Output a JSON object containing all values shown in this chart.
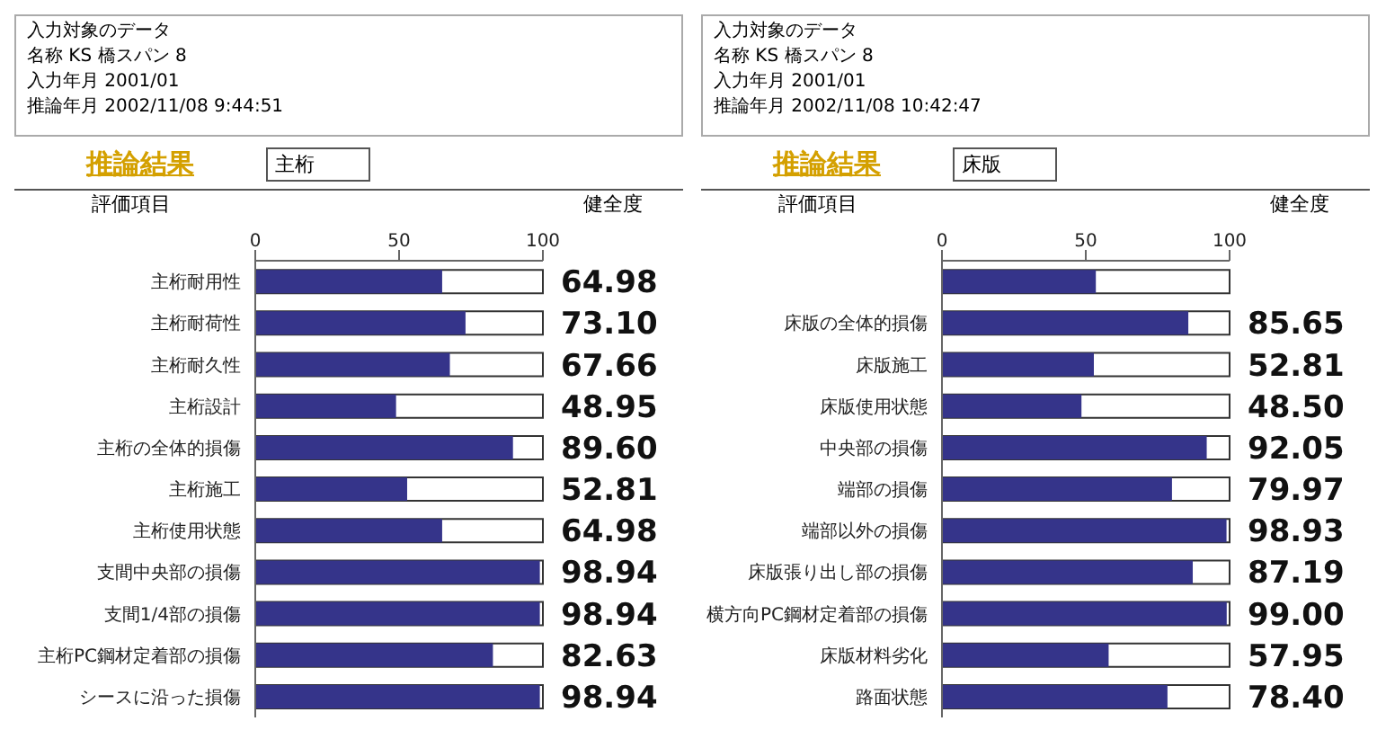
{
  "chart_data": [
    {
      "type": "bar",
      "orientation": "horizontal",
      "title": "推論結果",
      "subtitle": "主桁",
      "ylabel": "評価項目",
      "annotations": [
        "入力対象のデータ",
        "名称 KS 橋スパン 8",
        "入力年月 2001/01",
        "推論年月 2002/11/08 9:44:51",
        "健全度"
      ],
      "categories": [
        "主桁耐用性",
        "主桁耐荷性",
        "主桁耐久性",
        "主桁設計",
        "主桁の全体的損傷",
        "主桁施工",
        "主桁使用状態",
        "支間中央部の損傷",
        "支間1/4部の損傷",
        "主桁PC鋼材定着部の損傷",
        "シースに沿った損傷"
      ],
      "values": [
        64.98,
        73.1,
        67.66,
        48.95,
        89.6,
        52.81,
        64.98,
        98.94,
        98.94,
        82.63,
        98.94
      ],
      "value_labels": [
        "64.98",
        "73.10",
        "67.66",
        "48.95",
        "89.60",
        "52.81",
        "64.98",
        "98.94",
        "98.94",
        "82.63",
        "98.94"
      ],
      "color": "#35348a",
      "xlim": [
        0,
        100
      ],
      "xticks": [
        0,
        50,
        100
      ]
    },
    {
      "type": "bar",
      "orientation": "horizontal",
      "title": "推論結果",
      "subtitle": "床版",
      "ylabel": "評価項目",
      "annotations": [
        "入力対象のデータ",
        "名称 KS 橋スパン 8",
        "入力年月 2001/01",
        "推論年月 2002/11/08 10:42:47",
        "健全度"
      ],
      "categories": [
        null,
        "床版の全体的損傷",
        "床版施工",
        "床版使用状態",
        "中央部の損傷",
        "端部の損傷",
        "端部以外の損傷",
        "床版張り出し部の損傷",
        "横方向PC鋼材定着部の損傷",
        "床版材料劣化",
        "路面状態"
      ],
      "values": [
        53.5,
        85.65,
        52.81,
        48.5,
        92.05,
        79.97,
        98.93,
        87.19,
        99.0,
        57.95,
        78.4
      ],
      "value_labels": [
        null,
        "85.65",
        "52.81",
        "48.50",
        "92.05",
        "79.97",
        "98.93",
        "87.19",
        "99.00",
        "57.95",
        "78.40"
      ],
      "color": "#35348a",
      "xlim": [
        0,
        100
      ],
      "xticks": [
        0,
        50,
        100
      ]
    }
  ]
}
